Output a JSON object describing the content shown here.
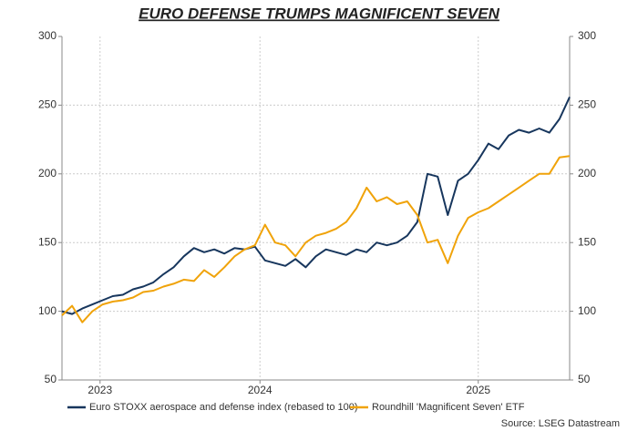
{
  "chart_data": {
    "type": "line",
    "title": "EURO DEFENSE TRUMPS MAGNIFICENT SEVEN",
    "x": [
      2023.25,
      2023.29,
      2023.33,
      2023.37,
      2023.41,
      2023.45,
      2023.49,
      2023.53,
      2023.57,
      2023.61,
      2023.65,
      2023.69,
      2023.73,
      2023.77,
      2023.81,
      2023.85,
      2023.89,
      2023.93,
      2023.97,
      2024.01,
      2024.05,
      2024.09,
      2024.13,
      2024.17,
      2024.21,
      2024.25,
      2024.29,
      2024.33,
      2024.37,
      2024.41,
      2024.45,
      2024.49,
      2024.53,
      2024.57,
      2024.61,
      2024.65,
      2024.69,
      2024.73,
      2024.77,
      2024.81,
      2024.85,
      2024.89,
      2024.93,
      2024.97,
      2025.01,
      2025.05,
      2025.09,
      2025.13,
      2025.17,
      2025.21,
      2025.25
    ],
    "series": [
      {
        "name": "Euro STOXX aerospace and defense index (rebased to 100)",
        "color": "#17365d",
        "values": [
          100,
          98,
          102,
          105,
          108,
          111,
          112,
          116,
          118,
          121,
          127,
          132,
          140,
          146,
          143,
          145,
          142,
          146,
          145,
          147,
          137,
          135,
          133,
          138,
          132,
          140,
          145,
          143,
          141,
          145,
          143,
          150,
          148,
          150,
          155,
          165,
          200,
          198,
          170,
          195,
          200,
          210,
          222,
          218,
          228,
          232,
          230,
          233,
          230,
          240,
          256
        ]
      },
      {
        "name": "Roundhill 'Magnificent Seven' ETF",
        "color": "#f0a30a",
        "values": [
          97,
          104,
          92,
          100,
          105,
          107,
          108,
          110,
          114,
          115,
          118,
          120,
          123,
          122,
          130,
          125,
          132,
          140,
          145,
          148,
          163,
          150,
          148,
          140,
          150,
          155,
          157,
          160,
          165,
          175,
          190,
          180,
          183,
          178,
          180,
          170,
          150,
          152,
          135,
          155,
          168,
          172,
          175,
          180,
          185,
          190,
          195,
          200,
          200,
          212,
          213
        ]
      }
    ],
    "xlim": [
      2023.25,
      2025.25
    ],
    "xticks": [
      {
        "value": 2023.4,
        "label": "2023"
      },
      {
        "value": 2024.03,
        "label": "2024"
      },
      {
        "value": 2024.89,
        "label": "2025"
      }
    ],
    "ylim": [
      50,
      300
    ],
    "yticks": [
      50,
      100,
      150,
      200,
      250,
      300
    ],
    "y2lim": [
      50,
      300
    ],
    "y2ticks": [
      50,
      100,
      150,
      200,
      250,
      300
    ],
    "grid": true,
    "source": "Source: LSEG Datastream"
  }
}
